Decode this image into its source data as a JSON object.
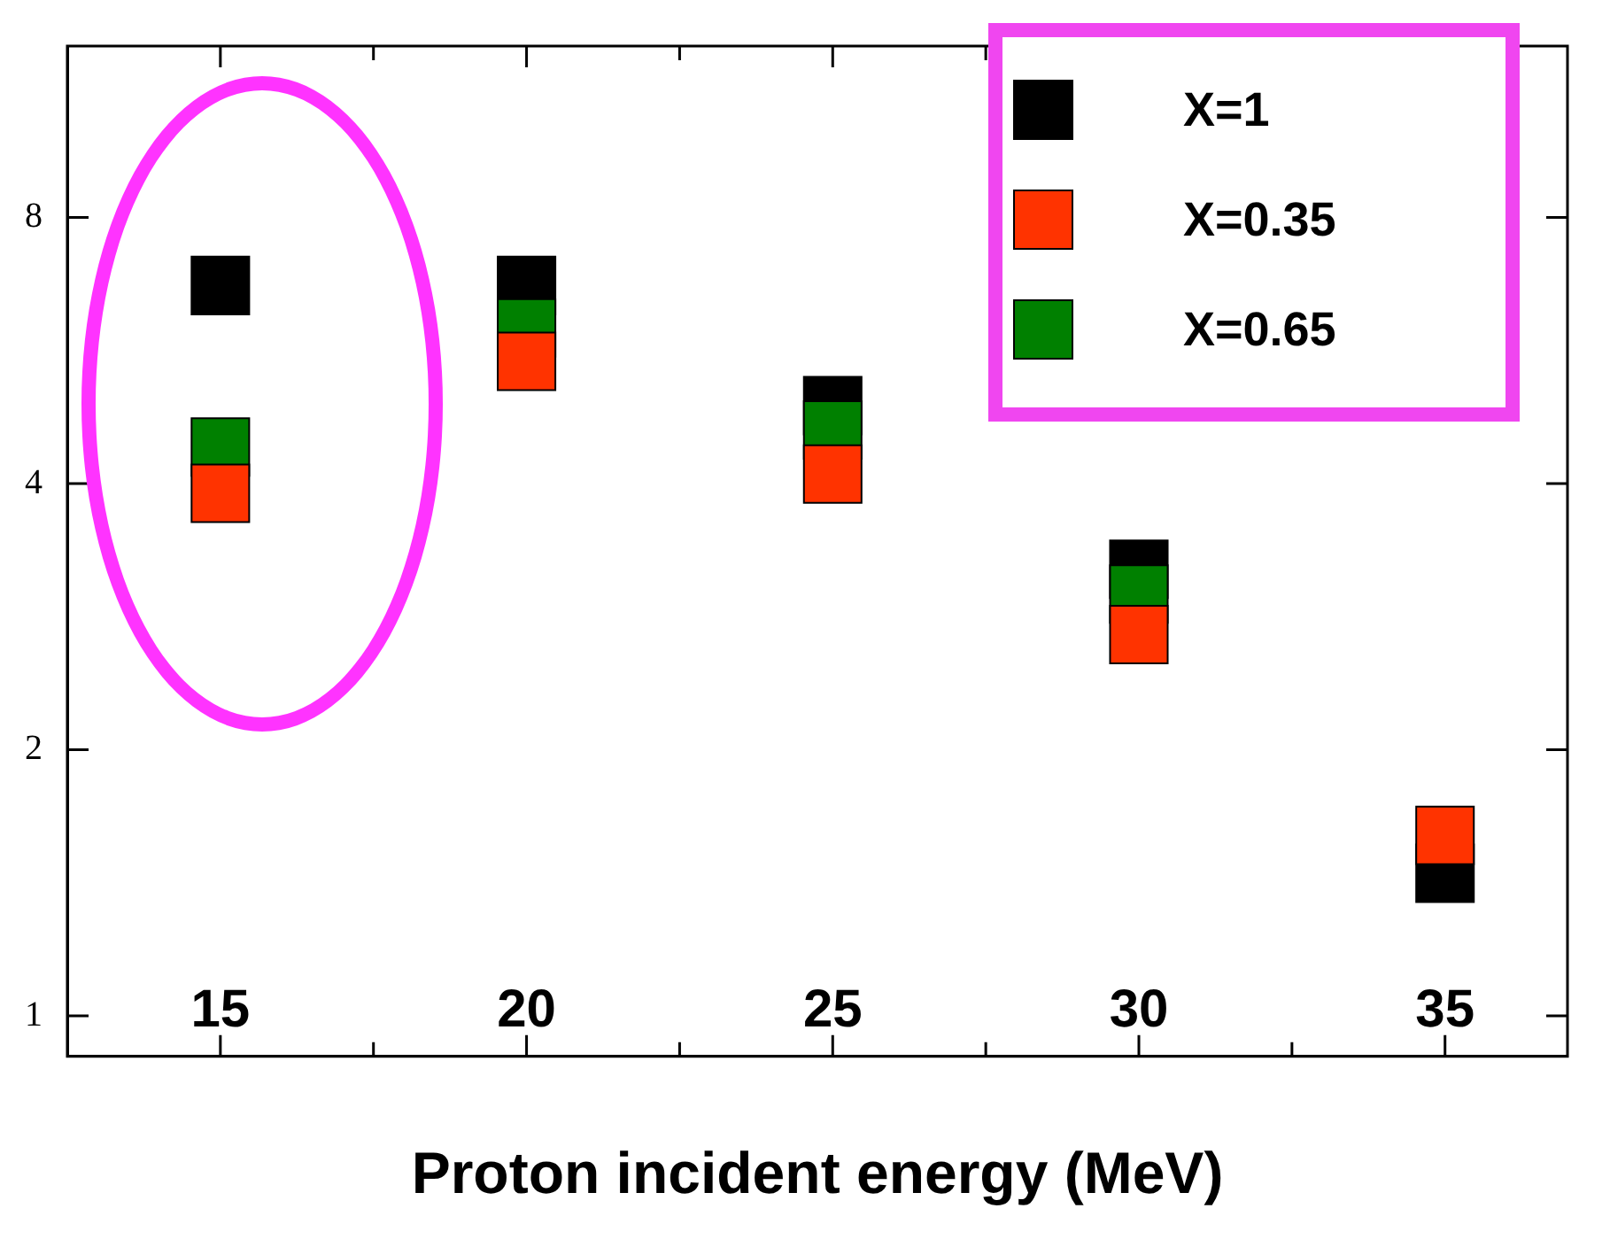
{
  "chart_data": {
    "type": "scatter",
    "xlabel": "Proton incident energy (MeV)",
    "log": "y",
    "marker": "square",
    "legend": "top right",
    "grid": false,
    "x": [
      15,
      20,
      25,
      30,
      35
    ],
    "xlim": [
      12.5,
      37
    ],
    "xticks": [
      15,
      {
        "value": 17.5,
        "label": null
      },
      20,
      {
        "value": 22.5,
        "label": null
      },
      25,
      {
        "value": 27.5,
        "label": null
      },
      30,
      {
        "value": 32.5,
        "label": null
      },
      35
    ],
    "ylim": [
      0.9,
      12.5
    ],
    "yticks": [
      1,
      2,
      4,
      8
    ],
    "series": [
      {
        "name": "X=1",
        "color": "#000000",
        "values": [
          6.7,
          6.7,
          4.9,
          3.2,
          1.45
        ]
      },
      {
        "name": "X=0.35",
        "color": "#ff3300",
        "values": [
          3.9,
          5.5,
          4.1,
          2.7,
          1.6
        ]
      },
      {
        "name": "X=0.65",
        "color": "#008000",
        "values": [
          4.4,
          6.0,
          4.6,
          3.0,
          null
        ]
      }
    ]
  }
}
